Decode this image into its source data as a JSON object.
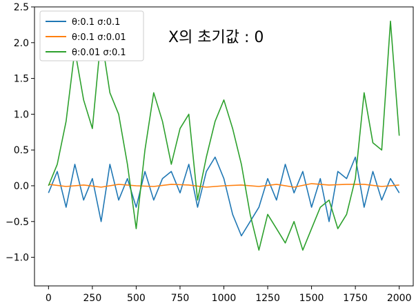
{
  "chart_data": {
    "type": "line",
    "title": "",
    "xlabel": "",
    "ylabel": "",
    "xlim": [
      -80,
      2080
    ],
    "ylim": [
      -1.4,
      2.5
    ],
    "xticks": [
      0,
      250,
      500,
      750,
      1000,
      1250,
      1500,
      1750,
      2000
    ],
    "yticks": [
      -1.0,
      -0.5,
      0.0,
      0.5,
      1.0,
      1.5,
      2.0,
      2.5
    ],
    "xtick_labels": [
      "0",
      "250",
      "500",
      "750",
      "1000",
      "1250",
      "1500",
      "1750",
      "2000"
    ],
    "ytick_labels": [
      "−1.0",
      "−0.5",
      "0.0",
      "0.5",
      "1.0",
      "1.5",
      "2.0",
      "2.5"
    ],
    "grid": false,
    "legend_position": "top-left",
    "annotation": "X의 초기값 : 0",
    "series": [
      {
        "name": "θ:0.1 σ:0.1",
        "color": "#1f77b4",
        "x": [
          0,
          50,
          100,
          150,
          200,
          250,
          300,
          350,
          400,
          450,
          500,
          550,
          600,
          650,
          700,
          750,
          800,
          850,
          900,
          950,
          1000,
          1050,
          1100,
          1150,
          1200,
          1250,
          1300,
          1350,
          1400,
          1450,
          1500,
          1550,
          1600,
          1650,
          1700,
          1750,
          1800,
          1850,
          1900,
          1950,
          2000
        ],
        "y": [
          -0.1,
          0.2,
          -0.3,
          0.3,
          -0.2,
          0.1,
          -0.5,
          0.3,
          -0.2,
          0.1,
          -0.3,
          0.2,
          -0.2,
          0.1,
          0.2,
          -0.1,
          0.3,
          -0.3,
          0.2,
          0.4,
          0.1,
          -0.4,
          -0.7,
          -0.5,
          -0.3,
          0.1,
          -0.2,
          0.3,
          -0.1,
          0.2,
          -0.3,
          0.1,
          -0.5,
          0.2,
          0.1,
          0.4,
          -0.3,
          0.2,
          -0.2,
          0.1,
          -0.1
        ]
      },
      {
        "name": "θ:0.1 σ:0.01",
        "color": "#ff7f0e",
        "x": [
          0,
          100,
          200,
          300,
          400,
          500,
          600,
          700,
          800,
          900,
          1000,
          1100,
          1200,
          1300,
          1400,
          1500,
          1600,
          1700,
          1800,
          1900,
          2000
        ],
        "y": [
          0.02,
          -0.01,
          0.01,
          -0.02,
          0.02,
          0.0,
          -0.01,
          0.02,
          0.01,
          -0.02,
          0.0,
          0.01,
          -0.01,
          0.02,
          -0.02,
          0.03,
          0.01,
          0.02,
          0.02,
          -0.01,
          0.01
        ]
      },
      {
        "name": "θ:0.01 σ:0.1",
        "color": "#2ca02c",
        "x": [
          0,
          50,
          100,
          150,
          200,
          250,
          300,
          350,
          400,
          450,
          500,
          550,
          600,
          650,
          700,
          750,
          800,
          850,
          900,
          950,
          1000,
          1050,
          1100,
          1150,
          1200,
          1250,
          1300,
          1350,
          1400,
          1450,
          1500,
          1550,
          1600,
          1650,
          1700,
          1750,
          1800,
          1850,
          1900,
          1950,
          2000
        ],
        "y": [
          0.0,
          0.3,
          0.9,
          1.9,
          1.2,
          0.8,
          2.1,
          1.3,
          1.0,
          0.3,
          -0.6,
          0.5,
          1.3,
          0.9,
          0.3,
          0.8,
          1.0,
          -0.2,
          0.4,
          0.9,
          1.2,
          0.8,
          0.3,
          -0.4,
          -0.9,
          -0.4,
          -0.6,
          -0.8,
          -0.5,
          -0.9,
          -0.6,
          -0.3,
          -0.2,
          -0.6,
          -0.4,
          0.1,
          1.3,
          0.6,
          0.5,
          2.3,
          0.7
        ]
      }
    ]
  }
}
